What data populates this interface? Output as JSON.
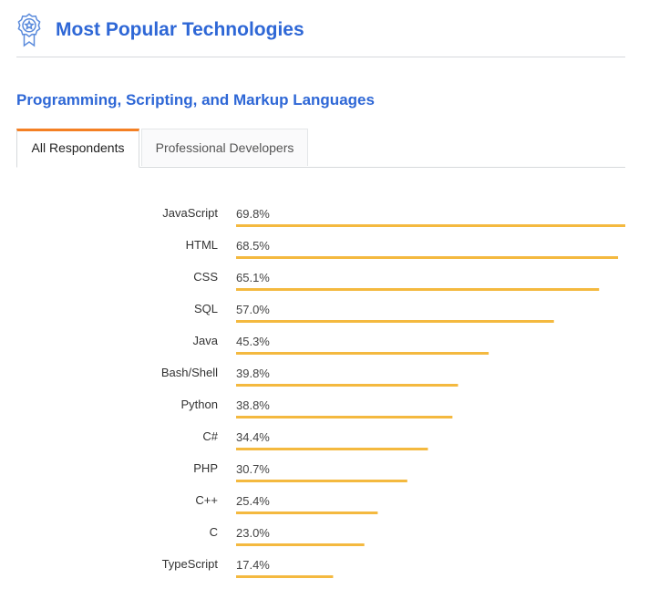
{
  "header": {
    "title": "Most Popular Technologies",
    "icon": "award-badge-icon"
  },
  "section": {
    "title": "Programming, Scripting, and Markup Languages"
  },
  "tabs": [
    {
      "label": "All Respondents",
      "active": true
    },
    {
      "label": "Professional Developers",
      "active": false
    }
  ],
  "colors": {
    "accent": "#2e67d6",
    "bar": "#f4b93f",
    "tab_highlight": "#f48024"
  },
  "chart_data": {
    "type": "bar",
    "orientation": "horizontal",
    "categories": [
      "JavaScript",
      "HTML",
      "CSS",
      "SQL",
      "Java",
      "Bash/Shell",
      "Python",
      "C#",
      "PHP",
      "C++",
      "C",
      "TypeScript"
    ],
    "values": [
      69.8,
      68.5,
      65.1,
      57.0,
      45.3,
      39.8,
      38.8,
      34.4,
      30.7,
      25.4,
      23.0,
      17.4
    ],
    "value_labels": [
      "69.8%",
      "68.5%",
      "65.1%",
      "57.0%",
      "45.3%",
      "39.8%",
      "38.8%",
      "34.4%",
      "30.7%",
      "25.4%",
      "23.0%",
      "17.4%"
    ],
    "xlim": [
      0,
      69.8
    ],
    "grid": false,
    "legend": "none"
  }
}
